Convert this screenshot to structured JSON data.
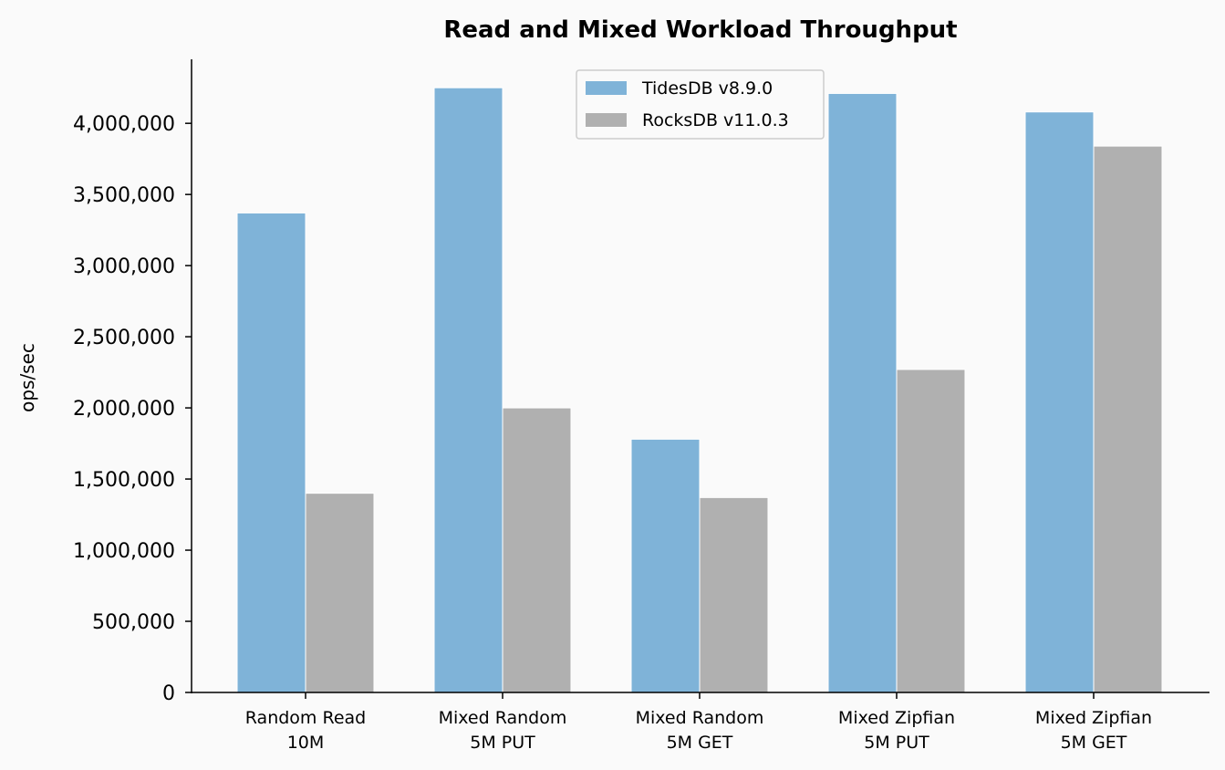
{
  "chart_data": {
    "type": "bar",
    "title": "Read and Mixed Workload Throughput",
    "xlabel": "",
    "ylabel": "ops/sec",
    "categories": [
      [
        "Random Read",
        "10M"
      ],
      [
        "Mixed Random",
        "5M PUT"
      ],
      [
        "Mixed Random",
        "5M GET"
      ],
      [
        "Mixed Zipfian",
        "5M PUT"
      ],
      [
        "Mixed Zipfian",
        "5M GET"
      ]
    ],
    "series": [
      {
        "name": "TidesDB v8.9.0",
        "color": "#7fb3d8",
        "values": [
          3370000,
          4250000,
          1780000,
          4210000,
          4080000
        ]
      },
      {
        "name": "RocksDB v11.0.3",
        "color": "#b0b0b0",
        "values": [
          1400000,
          2000000,
          1370000,
          2270000,
          3840000
        ]
      }
    ],
    "ylim": [
      0,
      4450000
    ],
    "yticks": [
      0,
      500000,
      1000000,
      1500000,
      2000000,
      2500000,
      3000000,
      3500000,
      4000000
    ],
    "ytick_labels": [
      "0",
      "500,000",
      "1,000,000",
      "1,500,000",
      "2,000,000",
      "2,500,000",
      "3,000,000",
      "3,500,000",
      "4,000,000"
    ],
    "grid": false,
    "legend_position": "top-center"
  }
}
